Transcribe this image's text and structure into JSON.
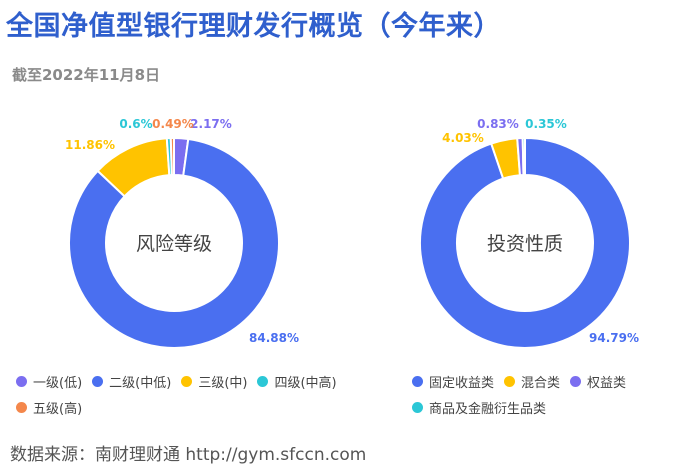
{
  "header": {
    "title": "全国净值型银行理财发行概览（今年来）",
    "subtitle": "截至2022年11月8日"
  },
  "footer": {
    "source": "数据来源：南财理财通 http://gym.sfccn.com"
  },
  "chart_data": [
    {
      "type": "pie",
      "center_label": "风险等级",
      "categories": [
        "一级(低)",
        "二级(中低)",
        "三级(中)",
        "四级(中高)",
        "五级(高)"
      ],
      "values": [
        2.17,
        84.88,
        11.86,
        0.6,
        0.49
      ],
      "value_labels": [
        "2.17%",
        "84.88%",
        "11.86%",
        "0.6%",
        "0.49%"
      ],
      "colors": [
        "#7b6ef0",
        "#4a6ff0",
        "#ffc300",
        "#2bc7d6",
        "#f4874b"
      ]
    },
    {
      "type": "pie",
      "center_label": "投资性质",
      "categories": [
        "固定收益类",
        "混合类",
        "权益类",
        "商品及金融衍生品类"
      ],
      "values": [
        94.79,
        4.03,
        0.83,
        0.35
      ],
      "value_labels": [
        "94.79%",
        "4.03%",
        "0.83%",
        "0.35%"
      ],
      "colors": [
        "#4a6ff0",
        "#ffc300",
        "#7b6ef0",
        "#2bc7d6"
      ]
    }
  ]
}
